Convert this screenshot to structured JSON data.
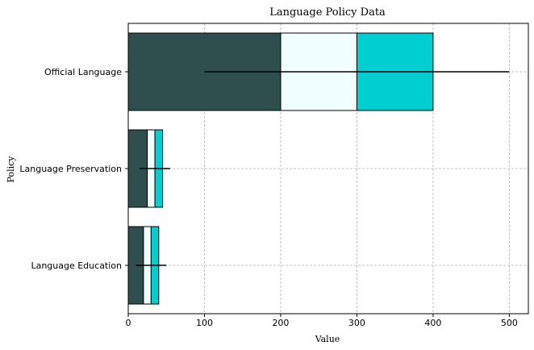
{
  "chart_data": {
    "type": "bar",
    "orientation": "horizontal",
    "stacked": true,
    "title": "Language Policy Data",
    "xlabel": "Value",
    "ylabel": "Policy",
    "categories": [
      "Official Language",
      "Language Preservation",
      "Language Education"
    ],
    "series": [
      {
        "values": [
          200,
          25,
          20
        ],
        "color": "#2f4f4f"
      },
      {
        "values": [
          100,
          10,
          10
        ],
        "color": "#f0ffff"
      },
      {
        "values": [
          100,
          10,
          10
        ],
        "color": "#00ced1"
      }
    ],
    "error_bars": [
      {
        "center": 300,
        "low": 100,
        "high": 500
      },
      {
        "center": 35,
        "low": 15,
        "high": 55
      },
      {
        "center": 30,
        "low": 10,
        "high": 50
      }
    ],
    "xlim": [
      0,
      525
    ],
    "xticks": [
      0,
      100,
      200,
      300,
      400,
      500
    ],
    "grid": true
  }
}
